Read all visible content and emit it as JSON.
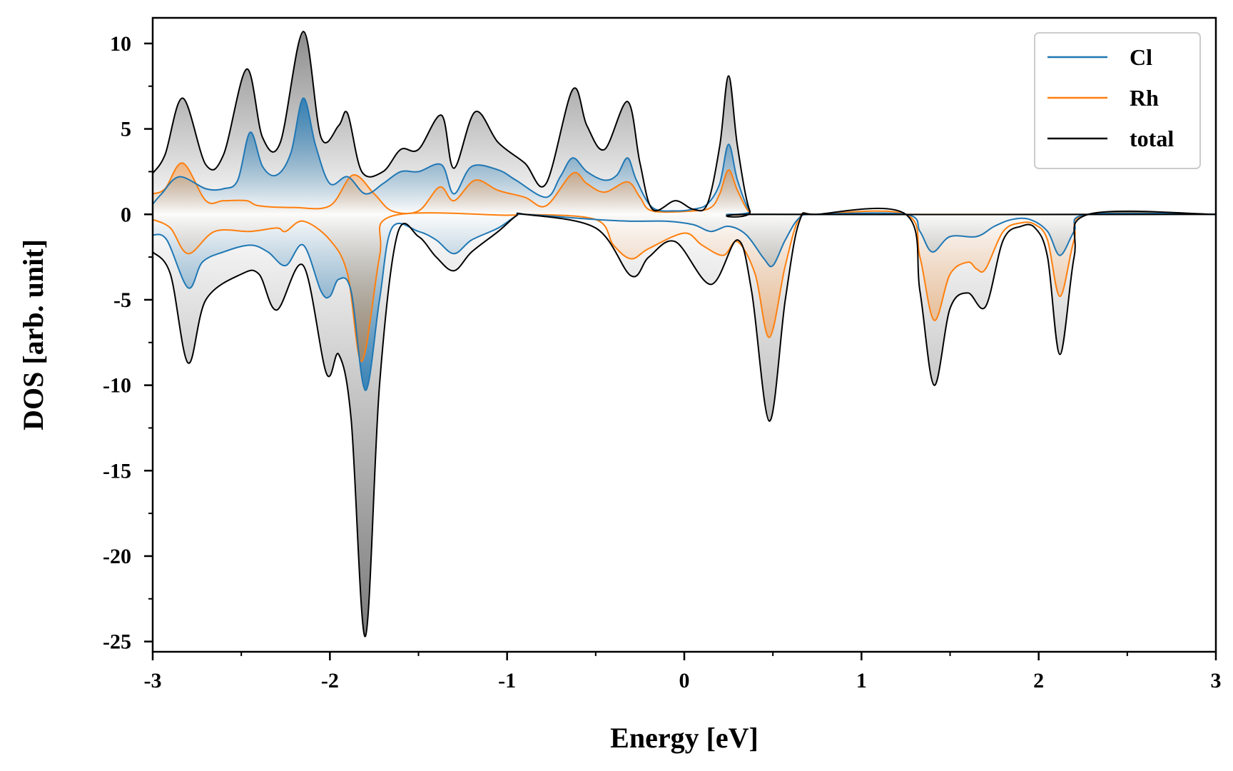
{
  "chart_data": {
    "type": "area",
    "xlabel": "Energy [eV]",
    "ylabel": "DOS [arb. unit]",
    "xlim": [
      -3,
      3
    ],
    "ylim": [
      -25.6,
      11.5
    ],
    "xticks": [
      -3,
      -2,
      -1,
      0,
      1,
      2,
      3
    ],
    "xtick_labels": [
      "-3",
      "-2",
      "-1",
      "0",
      "1",
      "2",
      "3"
    ],
    "yticks": [
      -25,
      -20,
      -15,
      -10,
      -5,
      0,
      5,
      10
    ],
    "ytick_labels": [
      "-25",
      "-20",
      "-15",
      "-10",
      "-5",
      "0",
      "5",
      "10"
    ],
    "grid": false,
    "legend_position": "top-right",
    "series": [
      {
        "name": "Cl",
        "color": "#1f77b4",
        "spin_up": [
          [
            -3.0,
            0.6
          ],
          [
            -2.95,
            1.2
          ],
          [
            -2.85,
            2.2
          ],
          [
            -2.7,
            1.5
          ],
          [
            -2.6,
            1.5
          ],
          [
            -2.52,
            2.0
          ],
          [
            -2.45,
            4.8
          ],
          [
            -2.38,
            2.8
          ],
          [
            -2.3,
            2.3
          ],
          [
            -2.22,
            3.6
          ],
          [
            -2.15,
            6.8
          ],
          [
            -2.08,
            4.0
          ],
          [
            -2.0,
            1.8
          ],
          [
            -1.9,
            2.2
          ],
          [
            -1.8,
            1.2
          ],
          [
            -1.7,
            1.8
          ],
          [
            -1.6,
            2.5
          ],
          [
            -1.5,
            2.5
          ],
          [
            -1.37,
            2.9
          ],
          [
            -1.3,
            1.2
          ],
          [
            -1.2,
            2.8
          ],
          [
            -1.05,
            2.6
          ],
          [
            -0.95,
            2.0
          ],
          [
            -0.78,
            1.0
          ],
          [
            -0.7,
            2.2
          ],
          [
            -0.63,
            3.3
          ],
          [
            -0.55,
            2.5
          ],
          [
            -0.45,
            2.0
          ],
          [
            -0.38,
            2.3
          ],
          [
            -0.32,
            3.3
          ],
          [
            -0.27,
            2.0
          ],
          [
            -0.18,
            0.4
          ],
          [
            -0.05,
            0.2
          ],
          [
            0.05,
            0.3
          ],
          [
            0.13,
            0.6
          ],
          [
            0.2,
            1.8
          ],
          [
            0.25,
            4.1
          ],
          [
            0.3,
            2.0
          ],
          [
            0.37,
            0.2
          ],
          [
            0.45,
            0.0
          ],
          [
            3.0,
            0.0
          ]
        ],
        "spin_down": [
          [
            -3.0,
            -1.2
          ],
          [
            -2.92,
            -1.5
          ],
          [
            -2.8,
            -4.3
          ],
          [
            -2.72,
            -2.8
          ],
          [
            -2.6,
            -2.2
          ],
          [
            -2.45,
            -1.8
          ],
          [
            -2.35,
            -2.2
          ],
          [
            -2.25,
            -3.0
          ],
          [
            -2.15,
            -1.8
          ],
          [
            -2.05,
            -4.5
          ],
          [
            -2.0,
            -4.8
          ],
          [
            -1.95,
            -3.8
          ],
          [
            -1.88,
            -4.5
          ],
          [
            -1.8,
            -10.3
          ],
          [
            -1.72,
            -5.0
          ],
          [
            -1.65,
            -0.8
          ],
          [
            -1.5,
            -1.0
          ],
          [
            -1.4,
            -1.5
          ],
          [
            -1.3,
            -2.3
          ],
          [
            -1.2,
            -1.5
          ],
          [
            -1.05,
            -0.8
          ],
          [
            -0.95,
            -0.1
          ],
          [
            -0.9,
            0.0
          ],
          [
            -0.5,
            -0.3
          ],
          [
            -0.3,
            -0.4
          ],
          [
            -0.1,
            -0.4
          ],
          [
            0.05,
            -0.6
          ],
          [
            0.15,
            -1.0
          ],
          [
            0.25,
            -0.7
          ],
          [
            0.35,
            -1.2
          ],
          [
            0.45,
            -2.6
          ],
          [
            0.5,
            -3.0
          ],
          [
            0.57,
            -1.5
          ],
          [
            0.65,
            -0.2
          ],
          [
            0.75,
            0.0
          ],
          [
            1.25,
            0.0
          ],
          [
            1.33,
            -1.0
          ],
          [
            1.4,
            -2.2
          ],
          [
            1.5,
            -1.3
          ],
          [
            1.65,
            -1.3
          ],
          [
            1.75,
            -0.7
          ],
          [
            1.85,
            -0.3
          ],
          [
            1.95,
            -0.3
          ],
          [
            2.05,
            -1.0
          ],
          [
            2.12,
            -2.4
          ],
          [
            2.2,
            -1.0
          ],
          [
            2.28,
            0.0
          ],
          [
            3.0,
            0.0
          ]
        ]
      },
      {
        "name": "Rh",
        "color": "#ff7f0e",
        "spin_up": [
          [
            -3.0,
            1.2
          ],
          [
            -2.93,
            1.5
          ],
          [
            -2.83,
            3.0
          ],
          [
            -2.7,
            0.8
          ],
          [
            -2.6,
            0.8
          ],
          [
            -2.47,
            0.8
          ],
          [
            -2.4,
            0.5
          ],
          [
            -2.2,
            0.4
          ],
          [
            -2.0,
            0.5
          ],
          [
            -1.87,
            2.3
          ],
          [
            -1.75,
            1.2
          ],
          [
            -1.65,
            0.2
          ],
          [
            -1.5,
            0.2
          ],
          [
            -1.38,
            1.6
          ],
          [
            -1.3,
            0.8
          ],
          [
            -1.18,
            2.0
          ],
          [
            -1.05,
            1.4
          ],
          [
            -0.9,
            1.0
          ],
          [
            -0.78,
            0.5
          ],
          [
            -0.63,
            2.4
          ],
          [
            -0.55,
            1.8
          ],
          [
            -0.45,
            1.3
          ],
          [
            -0.32,
            1.9
          ],
          [
            -0.25,
            1.0
          ],
          [
            -0.18,
            0.2
          ],
          [
            0.05,
            0.2
          ],
          [
            0.15,
            0.4
          ],
          [
            0.2,
            1.2
          ],
          [
            0.25,
            2.6
          ],
          [
            0.3,
            1.4
          ],
          [
            0.37,
            0.1
          ],
          [
            0.45,
            0.0
          ],
          [
            3.0,
            0.0
          ]
        ],
        "spin_down": [
          [
            -3.0,
            -0.3
          ],
          [
            -2.9,
            -0.8
          ],
          [
            -2.8,
            -2.3
          ],
          [
            -2.65,
            -1.0
          ],
          [
            -2.45,
            -1.0
          ],
          [
            -2.3,
            -0.8
          ],
          [
            -2.25,
            -1.0
          ],
          [
            -2.15,
            -0.4
          ],
          [
            -2.0,
            -1.5
          ],
          [
            -1.9,
            -3.5
          ],
          [
            -1.82,
            -8.6
          ],
          [
            -1.72,
            -2.5
          ],
          [
            -1.65,
            -0.1
          ],
          [
            -1.0,
            -0.05
          ],
          [
            -0.9,
            0.0
          ],
          [
            -0.5,
            -0.3
          ],
          [
            -0.4,
            -1.8
          ],
          [
            -0.3,
            -2.6
          ],
          [
            -0.2,
            -2.0
          ],
          [
            0.0,
            -1.1
          ],
          [
            0.1,
            -1.8
          ],
          [
            0.22,
            -2.4
          ],
          [
            0.3,
            -1.6
          ],
          [
            0.4,
            -3.5
          ],
          [
            0.48,
            -7.2
          ],
          [
            0.57,
            -3.0
          ],
          [
            0.65,
            -0.2
          ],
          [
            0.75,
            0.0
          ],
          [
            1.25,
            0.0
          ],
          [
            1.33,
            -2.5
          ],
          [
            1.41,
            -6.2
          ],
          [
            1.5,
            -3.5
          ],
          [
            1.6,
            -2.8
          ],
          [
            1.65,
            -3.2
          ],
          [
            1.7,
            -3.2
          ],
          [
            1.8,
            -1.0
          ],
          [
            1.9,
            -0.5
          ],
          [
            1.98,
            -0.6
          ],
          [
            2.05,
            -1.5
          ],
          [
            2.12,
            -4.8
          ],
          [
            2.2,
            -1.5
          ],
          [
            2.28,
            0.0
          ],
          [
            3.0,
            0.0
          ]
        ]
      },
      {
        "name": "total",
        "color": "#000000",
        "spin_up": [
          [
            -3.0,
            2.4
          ],
          [
            -2.93,
            3.5
          ],
          [
            -2.83,
            6.8
          ],
          [
            -2.7,
            2.9
          ],
          [
            -2.6,
            3.5
          ],
          [
            -2.47,
            8.5
          ],
          [
            -2.38,
            4.5
          ],
          [
            -2.28,
            4.2
          ],
          [
            -2.15,
            10.7
          ],
          [
            -2.05,
            4.5
          ],
          [
            -1.95,
            5.2
          ],
          [
            -1.9,
            5.9
          ],
          [
            -1.82,
            2.5
          ],
          [
            -1.7,
            2.5
          ],
          [
            -1.6,
            3.8
          ],
          [
            -1.5,
            3.8
          ],
          [
            -1.37,
            5.8
          ],
          [
            -1.3,
            2.7
          ],
          [
            -1.18,
            6.0
          ],
          [
            -1.05,
            4.2
          ],
          [
            -0.9,
            3.0
          ],
          [
            -0.78,
            1.8
          ],
          [
            -0.63,
            7.3
          ],
          [
            -0.55,
            5.2
          ],
          [
            -0.45,
            3.8
          ],
          [
            -0.32,
            6.6
          ],
          [
            -0.25,
            3.0
          ],
          [
            -0.18,
            0.3
          ],
          [
            -0.05,
            0.8
          ],
          [
            0.05,
            0.3
          ],
          [
            0.13,
            0.6
          ],
          [
            0.2,
            4.0
          ],
          [
            0.25,
            8.1
          ],
          [
            0.3,
            4.0
          ],
          [
            0.37,
            0.2
          ],
          [
            0.45,
            0.0
          ],
          [
            3.0,
            0.0
          ]
        ],
        "spin_down": [
          [
            -3.0,
            -2.2
          ],
          [
            -2.9,
            -3.5
          ],
          [
            -2.8,
            -8.7
          ],
          [
            -2.7,
            -5.0
          ],
          [
            -2.5,
            -3.5
          ],
          [
            -2.4,
            -3.5
          ],
          [
            -2.3,
            -5.6
          ],
          [
            -2.15,
            -3.0
          ],
          [
            -2.02,
            -9.3
          ],
          [
            -1.95,
            -8.2
          ],
          [
            -1.88,
            -12.0
          ],
          [
            -1.8,
            -24.7
          ],
          [
            -1.72,
            -10.0
          ],
          [
            -1.62,
            -1.2
          ],
          [
            -1.5,
            -1.3
          ],
          [
            -1.4,
            -2.5
          ],
          [
            -1.3,
            -3.3
          ],
          [
            -1.2,
            -2.2
          ],
          [
            -1.05,
            -1.0
          ],
          [
            -0.95,
            -0.1
          ],
          [
            -0.9,
            0.0
          ],
          [
            -0.5,
            -0.8
          ],
          [
            -0.3,
            -3.6
          ],
          [
            -0.2,
            -2.5
          ],
          [
            -0.05,
            -1.6
          ],
          [
            0.15,
            -4.1
          ],
          [
            0.3,
            -1.5
          ],
          [
            0.38,
            -4.5
          ],
          [
            0.48,
            -12.1
          ],
          [
            0.57,
            -5.0
          ],
          [
            0.65,
            -0.4
          ],
          [
            0.75,
            0.0
          ],
          [
            1.25,
            0.0
          ],
          [
            1.33,
            -4.5
          ],
          [
            1.41,
            -10.0
          ],
          [
            1.5,
            -5.5
          ],
          [
            1.6,
            -4.6
          ],
          [
            1.7,
            -5.4
          ],
          [
            1.8,
            -1.5
          ],
          [
            1.9,
            -0.7
          ],
          [
            1.98,
            -0.8
          ],
          [
            2.05,
            -2.5
          ],
          [
            2.12,
            -8.2
          ],
          [
            2.2,
            -2.5
          ],
          [
            2.28,
            0.0
          ],
          [
            3.0,
            0.0
          ]
        ]
      }
    ]
  }
}
